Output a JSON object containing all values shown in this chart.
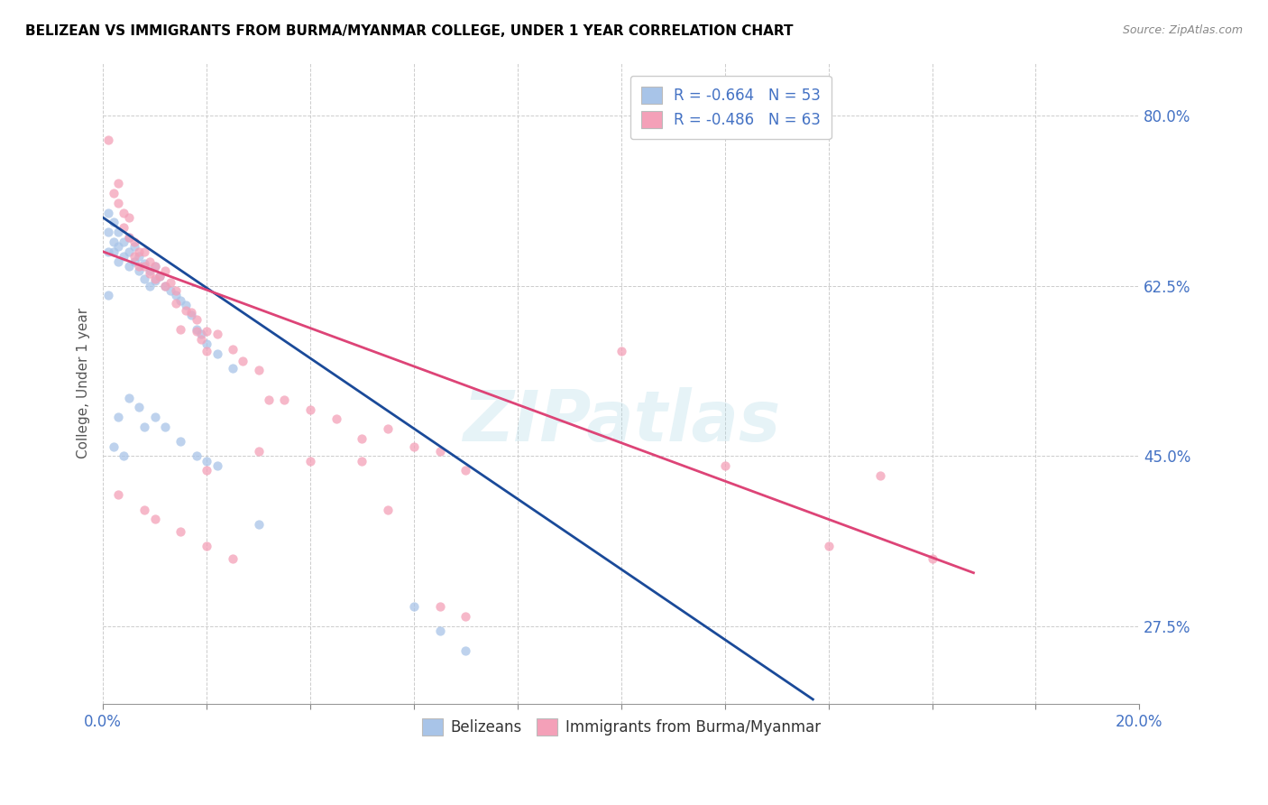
{
  "title": "BELIZEAN VS IMMIGRANTS FROM BURMA/MYANMAR COLLEGE, UNDER 1 YEAR CORRELATION CHART",
  "source": "Source: ZipAtlas.com",
  "ylabel": "College, Under 1 year",
  "legend1": "R = -0.664   N = 53",
  "legend2": "R = -0.486   N = 63",
  "legend1_color": "#4472c4",
  "legend2_color": "#e06080",
  "watermark": "ZIPatlas",
  "blue_scatter": [
    [
      0.001,
      0.7
    ],
    [
      0.001,
      0.68
    ],
    [
      0.001,
      0.66
    ],
    [
      0.002,
      0.69
    ],
    [
      0.002,
      0.67
    ],
    [
      0.002,
      0.66
    ],
    [
      0.003,
      0.68
    ],
    [
      0.003,
      0.665
    ],
    [
      0.003,
      0.65
    ],
    [
      0.004,
      0.67
    ],
    [
      0.004,
      0.655
    ],
    [
      0.005,
      0.675
    ],
    [
      0.005,
      0.66
    ],
    [
      0.005,
      0.645
    ],
    [
      0.006,
      0.665
    ],
    [
      0.006,
      0.65
    ],
    [
      0.007,
      0.655
    ],
    [
      0.007,
      0.64
    ],
    [
      0.008,
      0.648
    ],
    [
      0.008,
      0.632
    ],
    [
      0.009,
      0.64
    ],
    [
      0.009,
      0.625
    ],
    [
      0.01,
      0.645
    ],
    [
      0.01,
      0.63
    ],
    [
      0.011,
      0.635
    ],
    [
      0.012,
      0.625
    ],
    [
      0.013,
      0.62
    ],
    [
      0.014,
      0.615
    ],
    [
      0.015,
      0.61
    ],
    [
      0.016,
      0.605
    ],
    [
      0.017,
      0.595
    ],
    [
      0.018,
      0.58
    ],
    [
      0.019,
      0.575
    ],
    [
      0.02,
      0.565
    ],
    [
      0.022,
      0.555
    ],
    [
      0.025,
      0.54
    ],
    [
      0.003,
      0.49
    ],
    [
      0.005,
      0.51
    ],
    [
      0.007,
      0.5
    ],
    [
      0.008,
      0.48
    ],
    [
      0.01,
      0.49
    ],
    [
      0.012,
      0.48
    ],
    [
      0.015,
      0.465
    ],
    [
      0.018,
      0.45
    ],
    [
      0.02,
      0.445
    ],
    [
      0.022,
      0.44
    ],
    [
      0.002,
      0.46
    ],
    [
      0.004,
      0.45
    ],
    [
      0.03,
      0.38
    ],
    [
      0.06,
      0.295
    ],
    [
      0.065,
      0.27
    ],
    [
      0.07,
      0.25
    ],
    [
      0.001,
      0.615
    ]
  ],
  "pink_scatter": [
    [
      0.001,
      0.775
    ],
    [
      0.002,
      0.72
    ],
    [
      0.003,
      0.73
    ],
    [
      0.003,
      0.71
    ],
    [
      0.004,
      0.7
    ],
    [
      0.004,
      0.685
    ],
    [
      0.005,
      0.695
    ],
    [
      0.005,
      0.675
    ],
    [
      0.006,
      0.67
    ],
    [
      0.006,
      0.655
    ],
    [
      0.007,
      0.66
    ],
    [
      0.007,
      0.645
    ],
    [
      0.008,
      0.66
    ],
    [
      0.008,
      0.645
    ],
    [
      0.009,
      0.65
    ],
    [
      0.009,
      0.638
    ],
    [
      0.01,
      0.645
    ],
    [
      0.01,
      0.632
    ],
    [
      0.011,
      0.635
    ],
    [
      0.012,
      0.64
    ],
    [
      0.012,
      0.625
    ],
    [
      0.013,
      0.628
    ],
    [
      0.014,
      0.62
    ],
    [
      0.014,
      0.607
    ],
    [
      0.015,
      0.58
    ],
    [
      0.016,
      0.6
    ],
    [
      0.017,
      0.598
    ],
    [
      0.018,
      0.59
    ],
    [
      0.018,
      0.578
    ],
    [
      0.019,
      0.57
    ],
    [
      0.02,
      0.578
    ],
    [
      0.02,
      0.558
    ],
    [
      0.022,
      0.575
    ],
    [
      0.025,
      0.56
    ],
    [
      0.027,
      0.548
    ],
    [
      0.03,
      0.538
    ],
    [
      0.032,
      0.508
    ],
    [
      0.035,
      0.508
    ],
    [
      0.04,
      0.498
    ],
    [
      0.045,
      0.488
    ],
    [
      0.05,
      0.468
    ],
    [
      0.055,
      0.478
    ],
    [
      0.06,
      0.46
    ],
    [
      0.065,
      0.455
    ],
    [
      0.07,
      0.435
    ],
    [
      0.02,
      0.435
    ],
    [
      0.03,
      0.455
    ],
    [
      0.04,
      0.445
    ],
    [
      0.05,
      0.445
    ],
    [
      0.055,
      0.395
    ],
    [
      0.065,
      0.295
    ],
    [
      0.07,
      0.285
    ],
    [
      0.003,
      0.41
    ],
    [
      0.008,
      0.395
    ],
    [
      0.01,
      0.385
    ],
    [
      0.015,
      0.372
    ],
    [
      0.02,
      0.358
    ],
    [
      0.025,
      0.345
    ],
    [
      0.1,
      0.558
    ],
    [
      0.12,
      0.44
    ],
    [
      0.15,
      0.43
    ],
    [
      0.14,
      0.358
    ],
    [
      0.16,
      0.345
    ]
  ],
  "blue_line_x": [
    0.0,
    0.137
  ],
  "blue_line_y": [
    0.695,
    0.2
  ],
  "pink_line_x": [
    0.0,
    0.168
  ],
  "pink_line_y": [
    0.66,
    0.33
  ],
  "scatter_size": 55,
  "scatter_alpha": 0.75,
  "blue_color": "#a8c4e8",
  "pink_color": "#f4a0b8",
  "blue_line_color": "#1a4a99",
  "pink_line_color": "#dd4477",
  "bg_color": "#ffffff",
  "grid_color": "#cccccc",
  "title_color": "#000000",
  "axis_label_color": "#4472c4",
  "xmin": 0.0,
  "xmax": 0.2,
  "ymin": 0.195,
  "ymax": 0.855,
  "ytick_vals": [
    0.275,
    0.45,
    0.625,
    0.8
  ],
  "ytick_labels": [
    "27.5%",
    "45.0%",
    "62.5%",
    "80.0%"
  ],
  "xtick_positions": [
    0.0,
    0.02,
    0.04,
    0.06,
    0.08,
    0.1,
    0.12,
    0.14,
    0.16,
    0.18,
    0.2
  ]
}
